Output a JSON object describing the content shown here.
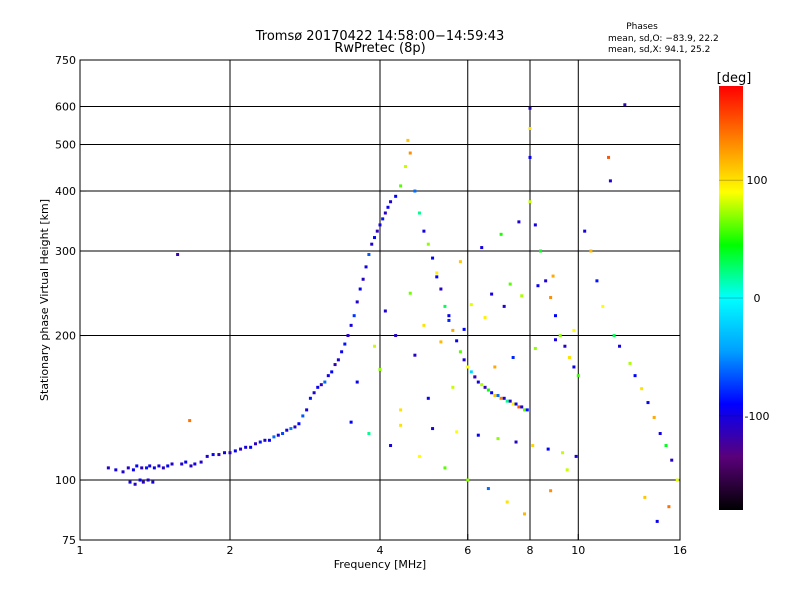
{
  "chart_data": {
    "type": "scatter",
    "title": "Tromsø 20170422 14:58:00−14:59:43",
    "subtitle": "RwPretec (8p)",
    "xlabel": "Frequency [MHz]",
    "ylabel": "Stationary phase Virtual Height [km]",
    "x_scale": "log",
    "y_scale": "log",
    "xlim": [
      1,
      16
    ],
    "ylim": [
      75,
      750
    ],
    "x_ticks": [
      1,
      2,
      4,
      6,
      8,
      10,
      16
    ],
    "y_ticks": [
      75,
      100,
      200,
      300,
      400,
      500,
      600,
      750
    ],
    "x_gridlines": [
      2,
      4,
      6,
      8,
      10
    ],
    "y_gridlines": [
      100,
      200,
      300,
      400,
      500,
      600
    ],
    "phases_box": {
      "heading": "Phases",
      "line_o": "mean, sd,O: −83.9, 22.2",
      "line_x": "mean, sd,X:  94.1, 25.2"
    },
    "colorbar": {
      "label": "[deg]",
      "range": [
        -180,
        180
      ],
      "ticks": [
        100,
        0,
        -100
      ],
      "colors": [
        "#000000",
        "#5a007a",
        "#0000ff",
        "#00a0ff",
        "#00ffff",
        "#00ff00",
        "#ffff00",
        "#ff8000",
        "#ff0000"
      ]
    },
    "series": [
      {
        "name": "echoes",
        "points": [
          [
            1.14,
            106,
            -110
          ],
          [
            1.18,
            105,
            -100
          ],
          [
            1.22,
            104,
            -105
          ],
          [
            1.25,
            106,
            -108
          ],
          [
            1.28,
            105,
            -95
          ],
          [
            1.3,
            107,
            -90
          ],
          [
            1.33,
            106,
            -112
          ],
          [
            1.36,
            106,
            -85
          ],
          [
            1.38,
            107,
            -100
          ],
          [
            1.41,
            106,
            -95
          ],
          [
            1.44,
            107,
            -102
          ],
          [
            1.47,
            106,
            -110
          ],
          [
            1.5,
            107,
            -92
          ],
          [
            1.53,
            108,
            -105
          ],
          [
            1.26,
            99,
            -100
          ],
          [
            1.29,
            98,
            -108
          ],
          [
            1.32,
            100,
            -95
          ],
          [
            1.34,
            99,
            -110
          ],
          [
            1.37,
            100,
            -105
          ],
          [
            1.4,
            99,
            -98
          ],
          [
            1.57,
            295,
            -115
          ],
          [
            1.6,
            108,
            -105
          ],
          [
            1.63,
            109,
            -95
          ],
          [
            1.67,
            107,
            -110
          ],
          [
            1.7,
            108,
            -100
          ],
          [
            1.75,
            109,
            -108
          ],
          [
            1.66,
            133,
            140
          ],
          [
            1.8,
            112,
            -105
          ],
          [
            1.85,
            113,
            -92
          ],
          [
            1.9,
            113,
            -112
          ],
          [
            1.95,
            114,
            -98
          ],
          [
            2.0,
            114,
            -110
          ],
          [
            2.05,
            115,
            -95
          ],
          [
            2.1,
            116,
            -108
          ],
          [
            2.15,
            117,
            -100
          ],
          [
            2.2,
            117,
            -90
          ],
          [
            2.25,
            119,
            -112
          ],
          [
            2.3,
            120,
            -85
          ],
          [
            2.35,
            121,
            -105
          ],
          [
            2.4,
            121,
            -95
          ],
          [
            2.45,
            123,
            -60
          ],
          [
            2.5,
            124,
            -102
          ],
          [
            2.55,
            125,
            -70
          ],
          [
            2.6,
            127,
            -100
          ],
          [
            2.65,
            128,
            -55
          ],
          [
            2.7,
            129,
            -110
          ],
          [
            2.75,
            131,
            -90
          ],
          [
            2.8,
            136,
            -65
          ],
          [
            2.85,
            140,
            -100
          ],
          [
            2.9,
            148,
            -85
          ],
          [
            2.95,
            152,
            -105
          ],
          [
            3.0,
            156,
            -95
          ],
          [
            3.05,
            158,
            -110
          ],
          [
            3.1,
            160,
            -60
          ],
          [
            3.15,
            165,
            -100
          ],
          [
            3.2,
            168,
            -90
          ],
          [
            3.25,
            174,
            -115
          ],
          [
            3.3,
            178,
            -105
          ],
          [
            3.35,
            185,
            -95
          ],
          [
            3.4,
            192,
            -85
          ],
          [
            3.45,
            200,
            -110
          ],
          [
            3.5,
            210,
            -100
          ],
          [
            3.55,
            220,
            -75
          ],
          [
            3.6,
            235,
            -105
          ],
          [
            3.65,
            250,
            -95
          ],
          [
            3.7,
            262,
            -110
          ],
          [
            3.75,
            278,
            -100
          ],
          [
            3.8,
            295,
            -65
          ],
          [
            3.85,
            310,
            -105
          ],
          [
            3.9,
            320,
            -90
          ],
          [
            3.95,
            330,
            -115
          ],
          [
            4.0,
            340,
            -100
          ],
          [
            4.05,
            350,
            -85
          ],
          [
            4.1,
            360,
            -110
          ],
          [
            4.15,
            370,
            -95
          ],
          [
            4.2,
            380,
            -105
          ],
          [
            4.3,
            390,
            -90
          ],
          [
            4.4,
            410,
            60
          ],
          [
            4.5,
            450,
            80
          ],
          [
            4.55,
            510,
            110
          ],
          [
            4.6,
            480,
            130
          ],
          [
            4.7,
            400,
            -60
          ],
          [
            4.8,
            360,
            20
          ],
          [
            4.9,
            330,
            -100
          ],
          [
            5.0,
            310,
            70
          ],
          [
            5.1,
            290,
            -90
          ],
          [
            5.2,
            270,
            95
          ],
          [
            5.3,
            250,
            -110
          ],
          [
            5.4,
            230,
            30
          ],
          [
            5.5,
            215,
            -80
          ],
          [
            5.6,
            205,
            120
          ],
          [
            5.7,
            195,
            -95
          ],
          [
            5.8,
            185,
            60
          ],
          [
            5.9,
            178,
            -105
          ],
          [
            6.0,
            172,
            90
          ],
          [
            6.1,
            168,
            -20
          ],
          [
            6.2,
            164,
            140
          ],
          [
            6.3,
            160,
            -100
          ],
          [
            6.4,
            158,
            75
          ],
          [
            6.5,
            156,
            -115
          ],
          [
            6.6,
            154,
            45
          ],
          [
            6.7,
            152,
            -90
          ],
          [
            6.8,
            150,
            110
          ],
          [
            6.9,
            150,
            -60
          ],
          [
            7.0,
            148,
            135
          ],
          [
            7.1,
            148,
            -100
          ],
          [
            7.2,
            146,
            20
          ],
          [
            7.3,
            146,
            -110
          ],
          [
            7.4,
            144,
            95
          ],
          [
            7.5,
            144,
            -95
          ],
          [
            7.6,
            142,
            150
          ],
          [
            7.7,
            142,
            -105
          ],
          [
            7.8,
            140,
            60
          ],
          [
            7.9,
            140,
            -85
          ],
          [
            8.0,
            595,
            -110
          ],
          [
            8.0,
            540,
            100
          ],
          [
            8.0,
            470,
            -95
          ],
          [
            8.0,
            380,
            80
          ],
          [
            8.2,
            340,
            -100
          ],
          [
            8.4,
            300,
            40
          ],
          [
            8.6,
            260,
            -105
          ],
          [
            8.8,
            240,
            130
          ],
          [
            9.0,
            220,
            -90
          ],
          [
            9.2,
            200,
            70
          ],
          [
            9.4,
            190,
            -110
          ],
          [
            9.6,
            180,
            100
          ],
          [
            9.8,
            172,
            -95
          ],
          [
            10.0,
            165,
            55
          ],
          [
            10.3,
            330,
            -100
          ],
          [
            10.6,
            300,
            115
          ],
          [
            10.9,
            260,
            -85
          ],
          [
            11.2,
            230,
            90
          ],
          [
            11.5,
            470,
            150
          ],
          [
            11.6,
            420,
            -105
          ],
          [
            11.8,
            200,
            30
          ],
          [
            12.1,
            190,
            -100
          ],
          [
            12.4,
            605,
            -115
          ],
          [
            12.7,
            175,
            75
          ],
          [
            13.0,
            165,
            -90
          ],
          [
            13.4,
            155,
            100
          ],
          [
            13.8,
            145,
            -95
          ],
          [
            14.2,
            135,
            120
          ],
          [
            14.6,
            125,
            -100
          ],
          [
            15.0,
            118,
            40
          ],
          [
            15.4,
            110,
            -110
          ],
          [
            15.8,
            100,
            85
          ],
          [
            15.2,
            88,
            140
          ],
          [
            14.4,
            82,
            -95
          ],
          [
            13.6,
            92,
            110
          ],
          [
            9.5,
            105,
            80
          ],
          [
            8.8,
            95,
            130
          ],
          [
            7.8,
            85,
            115
          ],
          [
            7.2,
            90,
            100
          ],
          [
            6.6,
            96,
            -60
          ],
          [
            6.0,
            100,
            70
          ],
          [
            5.4,
            106,
            60
          ],
          [
            4.8,
            112,
            90
          ],
          [
            4.2,
            118,
            -100
          ],
          [
            3.8,
            125,
            20
          ],
          [
            3.5,
            132,
            -90
          ],
          [
            4.4,
            140,
            100
          ],
          [
            5.0,
            148,
            -95
          ],
          [
            5.6,
            156,
            80
          ],
          [
            6.2,
            164,
            -110
          ],
          [
            6.8,
            172,
            120
          ],
          [
            7.4,
            180,
            -80
          ],
          [
            8.2,
            188,
            70
          ],
          [
            9.0,
            196,
            -100
          ],
          [
            9.8,
            205,
            90
          ],
          [
            4.1,
            225,
            -105
          ],
          [
            4.6,
            245,
            65
          ],
          [
            5.2,
            265,
            -90
          ],
          [
            5.8,
            285,
            110
          ],
          [
            6.4,
            305,
            -100
          ],
          [
            7.0,
            325,
            50
          ],
          [
            7.6,
            345,
            -105
          ],
          [
            3.9,
            190,
            80
          ],
          [
            4.3,
            200,
            -110
          ],
          [
            4.9,
            210,
            100
          ],
          [
            5.5,
            220,
            -95
          ],
          [
            6.1,
            232,
            85
          ],
          [
            6.7,
            244,
            -100
          ],
          [
            7.3,
            256,
            60
          ],
          [
            3.6,
            160,
            -95
          ],
          [
            4.0,
            170,
            70
          ],
          [
            4.7,
            182,
            -110
          ],
          [
            5.3,
            194,
            115
          ],
          [
            5.9,
            206,
            -90
          ],
          [
            6.5,
            218,
            95
          ],
          [
            7.1,
            230,
            -105
          ],
          [
            7.7,
            242,
            75
          ],
          [
            8.3,
            254,
            -95
          ],
          [
            8.9,
            266,
            120
          ],
          [
            4.4,
            130,
            100
          ],
          [
            5.1,
            128,
            -100
          ],
          [
            5.7,
            126,
            90
          ],
          [
            6.3,
            124,
            -95
          ],
          [
            6.9,
            122,
            70
          ],
          [
            7.5,
            120,
            -110
          ],
          [
            8.1,
            118,
            105
          ],
          [
            8.7,
            116,
            -90
          ],
          [
            9.3,
            114,
            80
          ],
          [
            9.9,
            112,
            -100
          ]
        ]
      }
    ]
  }
}
